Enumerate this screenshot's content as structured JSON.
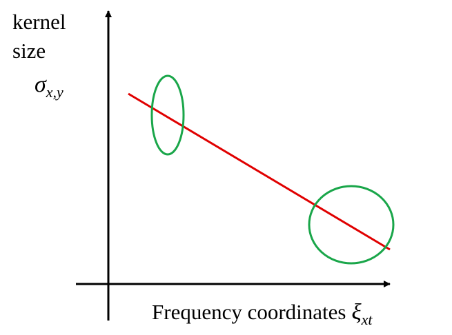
{
  "y_axis_label": {
    "lines": [
      "kernel",
      "size"
    ],
    "symbol": "σ",
    "subscript": "x,y"
  },
  "x_axis_label": {
    "text": "Frequency coordinates",
    "symbol": "ξ",
    "subscript": "xt"
  }
}
